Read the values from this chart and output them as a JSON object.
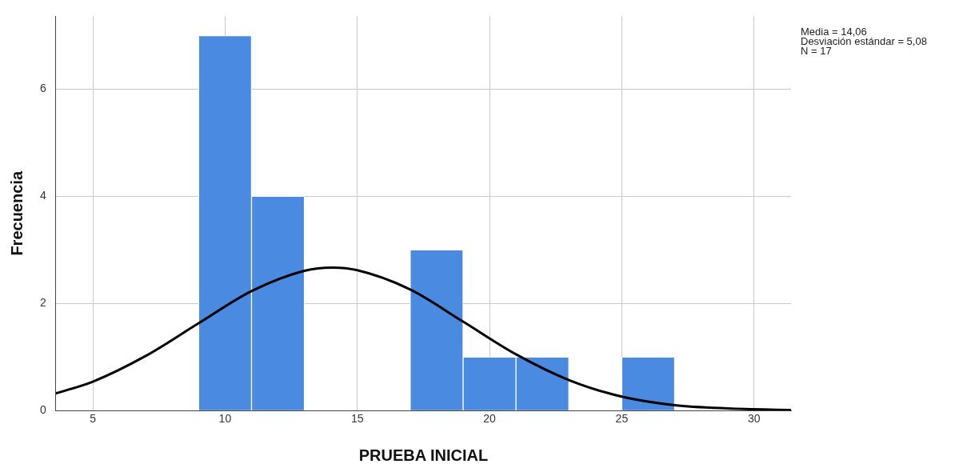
{
  "chart_data": {
    "type": "histogram",
    "xlabel": "PRUEBA INICIAL",
    "ylabel": "Frecuencia",
    "bins": [
      9,
      11,
      13,
      15,
      17,
      19,
      21,
      23,
      25,
      27
    ],
    "values": [
      7,
      4,
      0,
      0,
      3,
      1,
      1,
      0,
      1
    ],
    "color": "#4a8ae0",
    "series": [
      {
        "type": "line",
        "color": "#000000",
        "x": [
          3.6,
          5,
          7,
          9,
          11,
          13,
          14.06,
          15,
          17,
          19,
          21,
          23,
          25,
          27,
          29,
          31.4
        ],
        "values": [
          0.32,
          0.54,
          1.02,
          1.63,
          2.23,
          2.61,
          2.67,
          2.62,
          2.26,
          1.66,
          1.05,
          0.57,
          0.26,
          0.1,
          0.04,
          0.01
        ]
      }
    ],
    "marker": "none",
    "line_style": "solid",
    "xlim": [
      3.6,
      31.4
    ],
    "xticks": [
      5,
      10,
      15,
      20,
      25,
      30
    ],
    "ylim": [
      0,
      7.36
    ],
    "yticks": [
      0,
      2,
      4,
      6
    ],
    "grid": true,
    "legend": false,
    "annotations": [
      "Media = 14,06\nDesviación estándar = 5,08\nN = 17"
    ]
  }
}
